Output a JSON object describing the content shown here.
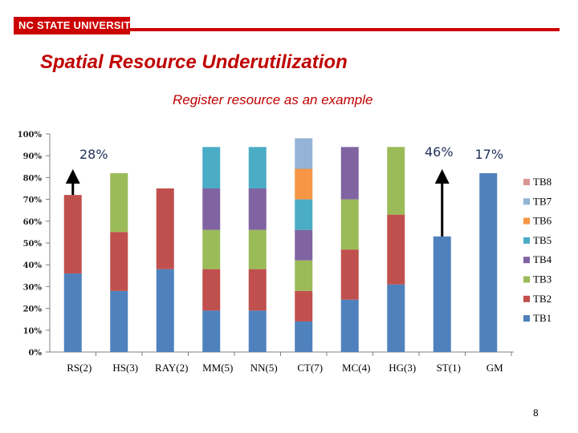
{
  "header": {
    "logo_text": "NC STATE UNIVERSITY",
    "brand_color": "#cc0000"
  },
  "slide": {
    "title": "Spatial Resource Underutilization",
    "subtitle": "Register resource as an example",
    "page_number": "8"
  },
  "chart_data": {
    "type": "bar",
    "stacked": true,
    "categories": [
      "RS(2)",
      "HS(3)",
      "RAY(2)",
      "MM(5)",
      "NN(5)",
      "CT(7)",
      "MC(4)",
      "HG(3)",
      "ST(1)",
      "GM"
    ],
    "series": [
      {
        "name": "TB1",
        "color": "#4f81bd",
        "values": [
          36,
          28,
          38,
          19,
          19,
          14,
          24,
          31,
          53,
          82
        ]
      },
      {
        "name": "TB2",
        "color": "#c0504d",
        "values": [
          36,
          27,
          37,
          19,
          19,
          14,
          23,
          32,
          0,
          0
        ]
      },
      {
        "name": "TB3",
        "color": "#9bbb59",
        "values": [
          0,
          27,
          0,
          18,
          18,
          14,
          23,
          31,
          0,
          0
        ]
      },
      {
        "name": "TB4",
        "color": "#8064a2",
        "values": [
          0,
          0,
          0,
          19,
          19,
          14,
          24,
          0,
          0,
          0
        ]
      },
      {
        "name": "TB5",
        "color": "#4bacc6",
        "values": [
          0,
          0,
          0,
          19,
          19,
          14,
          0,
          0,
          0,
          0
        ]
      },
      {
        "name": "TB6",
        "color": "#f79646",
        "values": [
          0,
          0,
          0,
          0,
          0,
          14,
          0,
          0,
          0,
          0
        ]
      },
      {
        "name": "TB7",
        "color": "#94b3d6",
        "values": [
          0,
          0,
          0,
          0,
          0,
          14,
          0,
          0,
          0,
          0
        ]
      },
      {
        "name": "TB8",
        "color": "#d99694",
        "values": [
          0,
          0,
          0,
          0,
          0,
          0,
          0,
          0,
          0,
          0
        ]
      }
    ],
    "legend_order": [
      "TB8",
      "TB7",
      "TB6",
      "TB5",
      "TB4",
      "TB3",
      "TB2",
      "TB1"
    ],
    "ylim": [
      0,
      100
    ],
    "yticks": [
      "0%",
      "10%",
      "20%",
      "30%",
      "40%",
      "50%",
      "60%",
      "70%",
      "80%",
      "90%",
      "100%"
    ],
    "xlabel": "",
    "ylabel": "",
    "title": "",
    "annotations": [
      {
        "text": "28%",
        "category": "RS(2)",
        "arrow_from": 72,
        "arrow_to": 82
      },
      {
        "text": "46%",
        "category": "ST(1)",
        "arrow_from": 53,
        "arrow_to": 82
      },
      {
        "text": "17%",
        "category": "GM"
      }
    ]
  }
}
